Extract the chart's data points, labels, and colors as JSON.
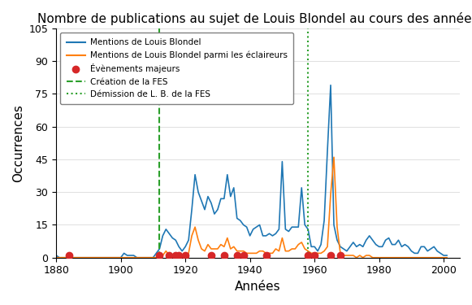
{
  "title": "Nombre de publications au sujet de Louis Blondel au cours des années",
  "xlabel": "Années",
  "ylabel": "Occurrences",
  "ylim": [
    0,
    105
  ],
  "xlim": [
    1880,
    2005
  ],
  "creation_fes_year": 1912,
  "demission_fes_year": 1958,
  "legend_labels": {
    "blue": "Mentions de Louis Blondel",
    "orange": "Mentions de Louis Blondel parmi les éclaireurs",
    "red": "Évènements majeurs",
    "dashed_green": "Création de la FES",
    "dotted_green": "Démission de L. B. de la FES"
  },
  "blue_data": {
    "years": [
      1880,
      1881,
      1882,
      1883,
      1884,
      1885,
      1886,
      1887,
      1888,
      1889,
      1890,
      1891,
      1892,
      1893,
      1894,
      1895,
      1896,
      1897,
      1898,
      1899,
      1900,
      1901,
      1902,
      1903,
      1904,
      1905,
      1906,
      1907,
      1908,
      1909,
      1910,
      1911,
      1912,
      1913,
      1914,
      1915,
      1916,
      1917,
      1918,
      1919,
      1920,
      1921,
      1922,
      1923,
      1924,
      1925,
      1926,
      1927,
      1928,
      1929,
      1930,
      1931,
      1932,
      1933,
      1934,
      1935,
      1936,
      1937,
      1938,
      1939,
      1940,
      1941,
      1942,
      1943,
      1944,
      1945,
      1946,
      1947,
      1948,
      1949,
      1950,
      1951,
      1952,
      1953,
      1954,
      1955,
      1956,
      1957,
      1958,
      1959,
      1960,
      1961,
      1962,
      1963,
      1964,
      1965,
      1966,
      1967,
      1968,
      1969,
      1970,
      1971,
      1972,
      1973,
      1974,
      1975,
      1976,
      1977,
      1978,
      1979,
      1980,
      1981,
      1982,
      1983,
      1984,
      1985,
      1986,
      1987,
      1988,
      1989,
      1990,
      1991,
      1992,
      1993,
      1994,
      1995,
      1996,
      1997,
      1998,
      1999,
      2000,
      2001
    ],
    "values": [
      1,
      0,
      0,
      0,
      0,
      0,
      0,
      0,
      0,
      0,
      0,
      0,
      0,
      0,
      0,
      0,
      0,
      0,
      0,
      0,
      0,
      2,
      1,
      1,
      1,
      0,
      0,
      0,
      0,
      0,
      0,
      2,
      4,
      10,
      13,
      11,
      9,
      8,
      5,
      3,
      5,
      8,
      22,
      38,
      30,
      26,
      22,
      28,
      25,
      20,
      22,
      27,
      27,
      38,
      28,
      32,
      18,
      17,
      15,
      14,
      10,
      13,
      14,
      15,
      10,
      10,
      11,
      10,
      11,
      13,
      44,
      13,
      12,
      14,
      14,
      14,
      32,
      15,
      13,
      5,
      5,
      3,
      6,
      17,
      49,
      79,
      15,
      8,
      5,
      4,
      3,
      5,
      7,
      5,
      6,
      5,
      8,
      10,
      8,
      6,
      5,
      5,
      8,
      9,
      6,
      6,
      8,
      5,
      6,
      5,
      3,
      2,
      2,
      5,
      5,
      3,
      4,
      5,
      3,
      2,
      1,
      1
    ]
  },
  "orange_data": {
    "years": [
      1880,
      1881,
      1882,
      1883,
      1884,
      1885,
      1886,
      1887,
      1888,
      1889,
      1890,
      1891,
      1892,
      1893,
      1894,
      1895,
      1896,
      1897,
      1898,
      1899,
      1900,
      1901,
      1902,
      1903,
      1904,
      1905,
      1906,
      1907,
      1908,
      1909,
      1910,
      1911,
      1912,
      1913,
      1914,
      1915,
      1916,
      1917,
      1918,
      1919,
      1920,
      1921,
      1922,
      1923,
      1924,
      1925,
      1926,
      1927,
      1928,
      1929,
      1930,
      1931,
      1932,
      1933,
      1934,
      1935,
      1936,
      1937,
      1938,
      1939,
      1940,
      1941,
      1942,
      1943,
      1944,
      1945,
      1946,
      1947,
      1948,
      1949,
      1950,
      1951,
      1952,
      1953,
      1954,
      1955,
      1956,
      1957,
      1958,
      1959,
      1960,
      1961,
      1962,
      1963,
      1964,
      1965,
      1966,
      1967,
      1968,
      1969,
      1970,
      1971,
      1972,
      1973,
      1974,
      1975,
      1976,
      1977,
      1978,
      1979,
      1980,
      1981,
      1982,
      1983,
      1984,
      1985,
      1986,
      1987,
      1988,
      1989,
      1990,
      1991,
      1992,
      1993,
      1994,
      1995,
      1996,
      1997,
      1998,
      1999,
      2000,
      2001
    ],
    "values": [
      0,
      0,
      0,
      0,
      0,
      0,
      0,
      0,
      0,
      0,
      0,
      0,
      0,
      0,
      0,
      0,
      0,
      0,
      0,
      0,
      0,
      0,
      0,
      0,
      0,
      0,
      0,
      0,
      0,
      0,
      0,
      0,
      2,
      1,
      3,
      1,
      1,
      0,
      0,
      0,
      0,
      2,
      10,
      14,
      8,
      4,
      3,
      6,
      4,
      4,
      4,
      6,
      5,
      9,
      4,
      5,
      3,
      3,
      3,
      2,
      2,
      2,
      2,
      3,
      3,
      2,
      2,
      2,
      4,
      3,
      9,
      3,
      3,
      4,
      4,
      6,
      7,
      4,
      3,
      2,
      2,
      2,
      2,
      3,
      5,
      29,
      46,
      14,
      2,
      1,
      1,
      1,
      1,
      0,
      1,
      0,
      1,
      1,
      0,
      0,
      0,
      0,
      0,
      0,
      0,
      0,
      0,
      0,
      0,
      0,
      0,
      0,
      0,
      0,
      0,
      0,
      0,
      0,
      0,
      0,
      0,
      0
    ]
  },
  "event_years": [
    1884,
    1912,
    1915,
    1917,
    1918,
    1920,
    1928,
    1932,
    1936,
    1938,
    1945,
    1958,
    1960,
    1965,
    1968
  ],
  "event_y": 1,
  "blue_color": "#1f77b4",
  "orange_color": "#ff7f0e",
  "red_color": "#d62728",
  "green_color": "#2ca02c",
  "figsize": [
    5.81,
    3.75
  ],
  "dpi": 100,
  "xticks": [
    1880,
    1900,
    1920,
    1940,
    1960,
    1980,
    2000
  ],
  "yticks": [
    0,
    15,
    30,
    45,
    60,
    75,
    90,
    105
  ]
}
